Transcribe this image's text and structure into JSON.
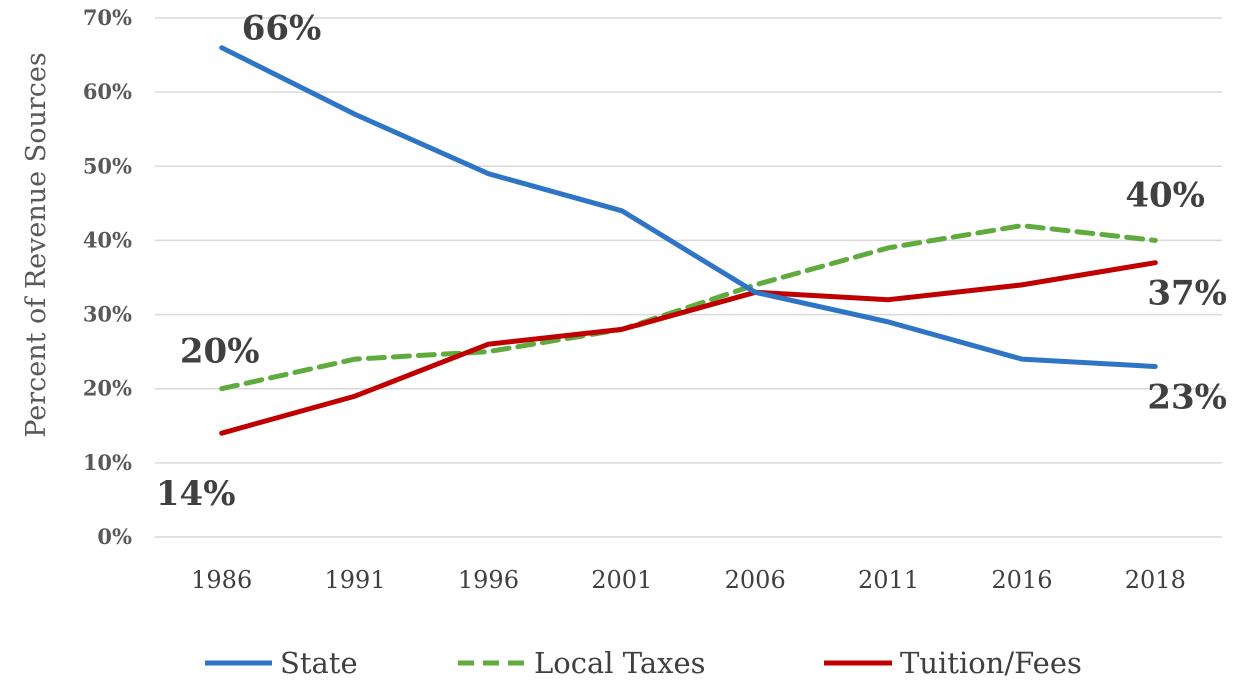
{
  "chart_data": {
    "type": "line",
    "title": "",
    "xlabel": "",
    "ylabel": "Percent of  Revenue Sources",
    "categories": [
      "1986",
      "1991",
      "1996",
      "2001",
      "2006",
      "2011",
      "2016",
      "2018"
    ],
    "ylim": [
      0,
      70
    ],
    "yticks": [
      0,
      10,
      20,
      30,
      40,
      50,
      60,
      70
    ],
    "ytick_labels": [
      "0%",
      "10%",
      "20%",
      "30%",
      "40%",
      "50%",
      "60%",
      "70%"
    ],
    "grid": true,
    "legend_position": "bottom",
    "series": [
      {
        "name": "State",
        "color": "#2E75C6",
        "dash": "solid",
        "values": [
          66,
          57,
          49,
          44,
          33,
          29,
          24,
          23
        ]
      },
      {
        "name": "Local Taxes",
        "color": "#5FAB3E",
        "dash": "dashed",
        "values": [
          20,
          24,
          25,
          28,
          34,
          39,
          42,
          40
        ]
      },
      {
        "name": "Tuition/Fees",
        "color": "#C00000",
        "dash": "solid",
        "values": [
          14,
          19,
          26,
          28,
          33,
          32,
          34,
          37
        ]
      }
    ],
    "annotations": [
      {
        "series": 0,
        "index": 0,
        "text": "66%",
        "placement": "above-right"
      },
      {
        "series": 0,
        "index": 7,
        "text": "23%",
        "placement": "below-right"
      },
      {
        "series": 1,
        "index": 0,
        "text": "20%",
        "placement": "above"
      },
      {
        "series": 1,
        "index": 7,
        "text": "40%",
        "placement": "above-right"
      },
      {
        "series": 2,
        "index": 0,
        "text": "14%",
        "placement": "below-left"
      },
      {
        "series": 2,
        "index": 7,
        "text": "37%",
        "placement": "below-right"
      }
    ]
  }
}
